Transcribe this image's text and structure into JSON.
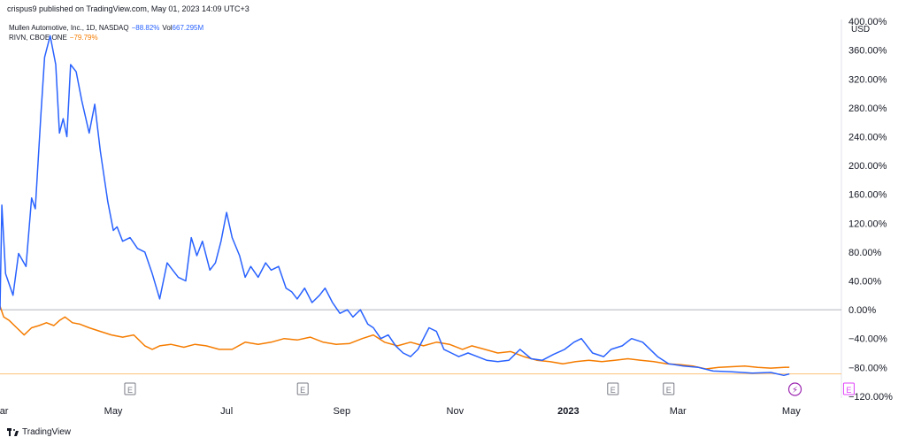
{
  "header": {
    "publisher": "crispus9 published on TradingView.com, May 01, 2023 14:09 UTC+3"
  },
  "legend": {
    "series1_name": "Mullen Automotive, Inc., 1D, NASDAQ",
    "series1_change": "−88.82%",
    "series1_vol_label": "Vol",
    "series1_vol_value": "667.295M",
    "series2_name": "RIVN, CBOE ONE",
    "series2_change": "−79.79%"
  },
  "footer": {
    "brand": "TradingView"
  },
  "colors": {
    "series1": "#2962ff",
    "series2": "#f57c00",
    "zero_line": "#b2b5be",
    "baseline": "#fbc07a",
    "earnings_marker": "#787b86",
    "upcoming_marker": "#e040fb",
    "dividend_marker": "#9c27b0"
  },
  "icons": {
    "earnings": "E",
    "split": "⚡",
    "brand_icon": "tradingview-logo-icon"
  },
  "chart_data": {
    "type": "line",
    "y_unit": "USD",
    "ylim": [
      -125,
      405
    ],
    "y_ticks": [
      {
        "value": 400,
        "label": "400.00%"
      },
      {
        "value": 360,
        "label": "360.00%"
      },
      {
        "value": 320,
        "label": "320.00%"
      },
      {
        "value": 280,
        "label": "280.00%"
      },
      {
        "value": 240,
        "label": "240.00%"
      },
      {
        "value": 200,
        "label": "200.00%"
      },
      {
        "value": 160,
        "label": "160.00%"
      },
      {
        "value": 120,
        "label": "120.00%"
      },
      {
        "value": 80,
        "label": "80.00%"
      },
      {
        "value": 40,
        "label": "40.00%"
      },
      {
        "value": 0,
        "label": "0.00%"
      },
      {
        "value": -40,
        "label": "−40.00%"
      },
      {
        "value": -80,
        "label": "−80.00%"
      },
      {
        "value": -120,
        "label": "−120.00%"
      }
    ],
    "xlim": [
      "2022-03-01",
      "2023-05-28"
    ],
    "x_ticks": [
      {
        "date": "2022-03-01",
        "label": "Mar",
        "bold": false
      },
      {
        "date": "2022-05-01",
        "label": "May",
        "bold": false
      },
      {
        "date": "2022-07-01",
        "label": "Jul",
        "bold": false
      },
      {
        "date": "2022-09-01",
        "label": "Sep",
        "bold": false
      },
      {
        "date": "2022-11-01",
        "label": "Nov",
        "bold": false
      },
      {
        "date": "2023-01-01",
        "label": "2023",
        "bold": true
      },
      {
        "date": "2023-03-01",
        "label": "Mar",
        "bold": false
      },
      {
        "date": "2023-05-01",
        "label": "May",
        "bold": false
      }
    ],
    "grid": false,
    "earnings_markers": [
      {
        "date": "2022-05-10",
        "label": "E",
        "kind": "past"
      },
      {
        "date": "2022-08-11",
        "label": "E",
        "kind": "past"
      },
      {
        "date": "2023-01-25",
        "label": "E",
        "kind": "past"
      },
      {
        "date": "2023-02-24",
        "label": "E",
        "kind": "past"
      },
      {
        "date": "2023-05-03",
        "label": "⚡",
        "kind": "split"
      },
      {
        "date": "2023-06-01",
        "label": "E",
        "kind": "upcoming"
      }
    ],
    "series": [
      {
        "name": "Mullen Automotive, Inc., 1D, NASDAQ",
        "color": "#2962ff",
        "points": [
          [
            "2022-03-01",
            0
          ],
          [
            "2022-03-02",
            145
          ],
          [
            "2022-03-04",
            50
          ],
          [
            "2022-03-08",
            20
          ],
          [
            "2022-03-11",
            78
          ],
          [
            "2022-03-15",
            60
          ],
          [
            "2022-03-18",
            155
          ],
          [
            "2022-03-20",
            140
          ],
          [
            "2022-03-23",
            270
          ],
          [
            "2022-03-25",
            350
          ],
          [
            "2022-03-28",
            380
          ],
          [
            "2022-03-31",
            340
          ],
          [
            "2022-04-02",
            245
          ],
          [
            "2022-04-04",
            265
          ],
          [
            "2022-04-06",
            240
          ],
          [
            "2022-04-08",
            340
          ],
          [
            "2022-04-11",
            330
          ],
          [
            "2022-04-14",
            290
          ],
          [
            "2022-04-18",
            245
          ],
          [
            "2022-04-21",
            285
          ],
          [
            "2022-04-24",
            220
          ],
          [
            "2022-04-28",
            150
          ],
          [
            "2022-05-01",
            110
          ],
          [
            "2022-05-03",
            115
          ],
          [
            "2022-05-06",
            95
          ],
          [
            "2022-05-10",
            100
          ],
          [
            "2022-05-14",
            85
          ],
          [
            "2022-05-18",
            80
          ],
          [
            "2022-05-22",
            50
          ],
          [
            "2022-05-26",
            15
          ],
          [
            "2022-05-30",
            65
          ],
          [
            "2022-06-02",
            55
          ],
          [
            "2022-06-05",
            45
          ],
          [
            "2022-06-09",
            40
          ],
          [
            "2022-06-12",
            100
          ],
          [
            "2022-06-15",
            75
          ],
          [
            "2022-06-18",
            95
          ],
          [
            "2022-06-22",
            55
          ],
          [
            "2022-06-25",
            65
          ],
          [
            "2022-06-28",
            95
          ],
          [
            "2022-07-01",
            135
          ],
          [
            "2022-07-04",
            100
          ],
          [
            "2022-07-08",
            75
          ],
          [
            "2022-07-11",
            45
          ],
          [
            "2022-07-14",
            60
          ],
          [
            "2022-07-18",
            45
          ],
          [
            "2022-07-22",
            65
          ],
          [
            "2022-07-25",
            55
          ],
          [
            "2022-07-29",
            60
          ],
          [
            "2022-08-02",
            30
          ],
          [
            "2022-08-05",
            25
          ],
          [
            "2022-08-08",
            15
          ],
          [
            "2022-08-12",
            30
          ],
          [
            "2022-08-16",
            10
          ],
          [
            "2022-08-20",
            20
          ],
          [
            "2022-08-23",
            30
          ],
          [
            "2022-08-27",
            10
          ],
          [
            "2022-08-31",
            -5
          ],
          [
            "2022-09-04",
            0
          ],
          [
            "2022-09-07",
            -10
          ],
          [
            "2022-09-11",
            0
          ],
          [
            "2022-09-15",
            -20
          ],
          [
            "2022-09-18",
            -25
          ],
          [
            "2022-09-22",
            -40
          ],
          [
            "2022-09-26",
            -35
          ],
          [
            "2022-09-30",
            -50
          ],
          [
            "2022-10-04",
            -60
          ],
          [
            "2022-10-08",
            -65
          ],
          [
            "2022-10-12",
            -55
          ],
          [
            "2022-10-16",
            -35
          ],
          [
            "2022-10-18",
            -25
          ],
          [
            "2022-10-22",
            -30
          ],
          [
            "2022-10-26",
            -55
          ],
          [
            "2022-10-30",
            -60
          ],
          [
            "2022-11-03",
            -65
          ],
          [
            "2022-11-08",
            -60
          ],
          [
            "2022-11-13",
            -65
          ],
          [
            "2022-11-18",
            -70
          ],
          [
            "2022-11-24",
            -72
          ],
          [
            "2022-11-30",
            -70
          ],
          [
            "2022-12-06",
            -55
          ],
          [
            "2022-12-12",
            -68
          ],
          [
            "2022-12-18",
            -70
          ],
          [
            "2022-12-24",
            -62
          ],
          [
            "2022-12-30",
            -55
          ],
          [
            "2023-01-04",
            -45
          ],
          [
            "2023-01-08",
            -40
          ],
          [
            "2023-01-14",
            -60
          ],
          [
            "2023-01-20",
            -65
          ],
          [
            "2023-01-24",
            -55
          ],
          [
            "2023-01-30",
            -50
          ],
          [
            "2023-02-04",
            -40
          ],
          [
            "2023-02-10",
            -45
          ],
          [
            "2023-02-18",
            -65
          ],
          [
            "2023-02-24",
            -75
          ],
          [
            "2023-03-04",
            -78
          ],
          [
            "2023-03-12",
            -80
          ],
          [
            "2023-03-20",
            -85
          ],
          [
            "2023-03-30",
            -86
          ],
          [
            "2023-04-10",
            -88
          ],
          [
            "2023-04-20",
            -87
          ],
          [
            "2023-04-27",
            -91
          ],
          [
            "2023-04-30",
            -89
          ]
        ]
      },
      {
        "name": "RIVN, CBOE ONE",
        "color": "#f57c00",
        "points": [
          [
            "2022-03-01",
            5
          ],
          [
            "2022-03-03",
            -10
          ],
          [
            "2022-03-06",
            -15
          ],
          [
            "2022-03-10",
            -25
          ],
          [
            "2022-03-14",
            -35
          ],
          [
            "2022-03-18",
            -25
          ],
          [
            "2022-03-22",
            -22
          ],
          [
            "2022-03-26",
            -18
          ],
          [
            "2022-03-30",
            -22
          ],
          [
            "2022-04-02",
            -15
          ],
          [
            "2022-04-05",
            -10
          ],
          [
            "2022-04-09",
            -18
          ],
          [
            "2022-04-13",
            -20
          ],
          [
            "2022-04-18",
            -25
          ],
          [
            "2022-04-24",
            -30
          ],
          [
            "2022-04-30",
            -35
          ],
          [
            "2022-05-06",
            -38
          ],
          [
            "2022-05-12",
            -35
          ],
          [
            "2022-05-18",
            -50
          ],
          [
            "2022-05-22",
            -55
          ],
          [
            "2022-05-26",
            -50
          ],
          [
            "2022-06-01",
            -48
          ],
          [
            "2022-06-08",
            -52
          ],
          [
            "2022-06-14",
            -48
          ],
          [
            "2022-06-20",
            -50
          ],
          [
            "2022-06-27",
            -55
          ],
          [
            "2022-07-04",
            -55
          ],
          [
            "2022-07-11",
            -45
          ],
          [
            "2022-07-18",
            -48
          ],
          [
            "2022-07-25",
            -45
          ],
          [
            "2022-08-01",
            -40
          ],
          [
            "2022-08-08",
            -42
          ],
          [
            "2022-08-15",
            -38
          ],
          [
            "2022-08-22",
            -45
          ],
          [
            "2022-08-29",
            -48
          ],
          [
            "2022-09-05",
            -47
          ],
          [
            "2022-09-12",
            -40
          ],
          [
            "2022-09-18",
            -35
          ],
          [
            "2022-09-24",
            -45
          ],
          [
            "2022-10-01",
            -50
          ],
          [
            "2022-10-08",
            -45
          ],
          [
            "2022-10-15",
            -50
          ],
          [
            "2022-10-22",
            -45
          ],
          [
            "2022-10-29",
            -48
          ],
          [
            "2022-11-05",
            -55
          ],
          [
            "2022-11-10",
            -50
          ],
          [
            "2022-11-17",
            -55
          ],
          [
            "2022-11-24",
            -60
          ],
          [
            "2022-12-01",
            -58
          ],
          [
            "2022-12-08",
            -65
          ],
          [
            "2022-12-15",
            -70
          ],
          [
            "2022-12-22",
            -72
          ],
          [
            "2022-12-29",
            -75
          ],
          [
            "2023-01-05",
            -72
          ],
          [
            "2023-01-12",
            -70
          ],
          [
            "2023-01-19",
            -72
          ],
          [
            "2023-01-26",
            -70
          ],
          [
            "2023-02-02",
            -68
          ],
          [
            "2023-02-09",
            -70
          ],
          [
            "2023-02-16",
            -72
          ],
          [
            "2023-02-23",
            -75
          ],
          [
            "2023-03-02",
            -76
          ],
          [
            "2023-03-09",
            -78
          ],
          [
            "2023-03-16",
            -82
          ],
          [
            "2023-03-23",
            -80
          ],
          [
            "2023-03-30",
            -79
          ],
          [
            "2023-04-06",
            -78
          ],
          [
            "2023-04-13",
            -80
          ],
          [
            "2023-04-20",
            -81
          ],
          [
            "2023-04-27",
            -80
          ],
          [
            "2023-04-30",
            -79.79
          ]
        ]
      }
    ]
  }
}
